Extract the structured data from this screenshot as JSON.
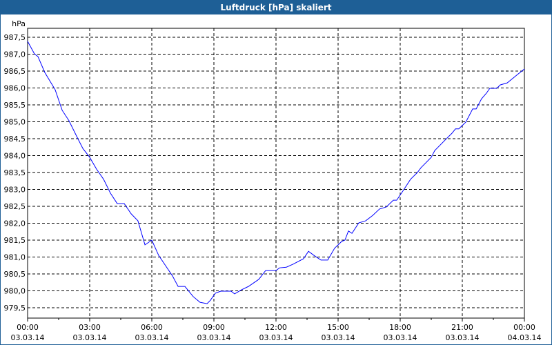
{
  "window_title": "Luftdruck [hPa] skaliert",
  "colors": {
    "title_bar": "#1e5f96",
    "line": "#0000ff"
  },
  "chart_data": {
    "type": "line",
    "title": "Luftdruck [hPa] skaliert",
    "ylabel": "hPa",
    "xlabel": "",
    "ylim": [
      979.2,
      987.77
    ],
    "xlim_hours": [
      0,
      24
    ],
    "grid": true,
    "y_ticks": [
      "979,5",
      "980,0",
      "980,5",
      "981,0",
      "981,5",
      "982,0",
      "982,5",
      "983,0",
      "983,5",
      "984,0",
      "984,5",
      "985,0",
      "985,5",
      "986,0",
      "986,5",
      "987,0",
      "987,5"
    ],
    "y_tick_values": [
      979.5,
      980,
      980.5,
      981,
      981.5,
      982,
      982.5,
      983,
      983.5,
      984,
      984.5,
      985,
      985.5,
      986,
      986.5,
      987,
      987.5
    ],
    "x_ticks": [
      {
        "time": "00:00",
        "date": "03.03.14"
      },
      {
        "time": "03:00",
        "date": "03.03.14"
      },
      {
        "time": "06:00",
        "date": "03.03.14"
      },
      {
        "time": "09:00",
        "date": "03.03.14"
      },
      {
        "time": "12:00",
        "date": "03.03.14"
      },
      {
        "time": "15:00",
        "date": "03.03.14"
      },
      {
        "time": "18:00",
        "date": "03.03.14"
      },
      {
        "time": "21:00",
        "date": "03.03.14"
      },
      {
        "time": "00:00",
        "date": "04.03.14"
      }
    ],
    "series": [
      {
        "name": "Luftdruck",
        "x_hours": [
          0,
          0.33,
          0.5,
          0.83,
          1.33,
          1.67,
          2,
          2.33,
          2.67,
          3,
          3.33,
          3.67,
          4,
          4.33,
          4.67,
          5,
          5.33,
          5.67,
          6,
          6.33,
          6.67,
          7,
          7.27,
          7.6,
          8,
          8.33,
          8.67,
          8.83,
          9.07,
          9.33,
          9.83,
          10,
          10.33,
          10.67,
          11.17,
          11.5,
          12,
          12.17,
          12.5,
          12.83,
          13.33,
          13.57,
          13.83,
          14.17,
          14.5,
          14.83,
          15.17,
          15.33,
          15.5,
          15.67,
          16,
          16.33,
          16.67,
          17,
          17.33,
          17.67,
          17.83,
          18.17,
          18.5,
          18.83,
          19,
          19.5,
          19.67,
          20.17,
          20.5,
          20.67,
          20.83,
          21.17,
          21.5,
          21.67,
          21.93,
          22.17,
          22.33,
          22.67,
          22.83,
          23.17,
          23.67,
          24
        ],
        "values": [
          987.38,
          987.01,
          986.93,
          986.46,
          985.95,
          985.34,
          985.03,
          984.62,
          984.21,
          983.95,
          983.6,
          983.3,
          982.89,
          982.58,
          982.58,
          982.28,
          982.07,
          981.36,
          981.5,
          981.05,
          980.74,
          980.44,
          980.13,
          980.13,
          979.83,
          979.66,
          979.62,
          979.72,
          979.93,
          979.99,
          979.99,
          979.91,
          980.03,
          980.13,
          980.34,
          980.6,
          980.6,
          980.68,
          980.7,
          980.79,
          980.95,
          981.17,
          981.05,
          980.91,
          980.91,
          981.26,
          981.46,
          981.5,
          981.77,
          981.7,
          982.01,
          982.07,
          982.23,
          982.42,
          982.48,
          982.68,
          982.68,
          982.99,
          983.3,
          983.5,
          983.64,
          983.95,
          984.15,
          984.46,
          984.66,
          984.79,
          984.79,
          984.99,
          985.38,
          985.38,
          985.68,
          985.85,
          985.99,
          985.99,
          986.09,
          986.15,
          986.4,
          986.56
        ]
      }
    ]
  }
}
